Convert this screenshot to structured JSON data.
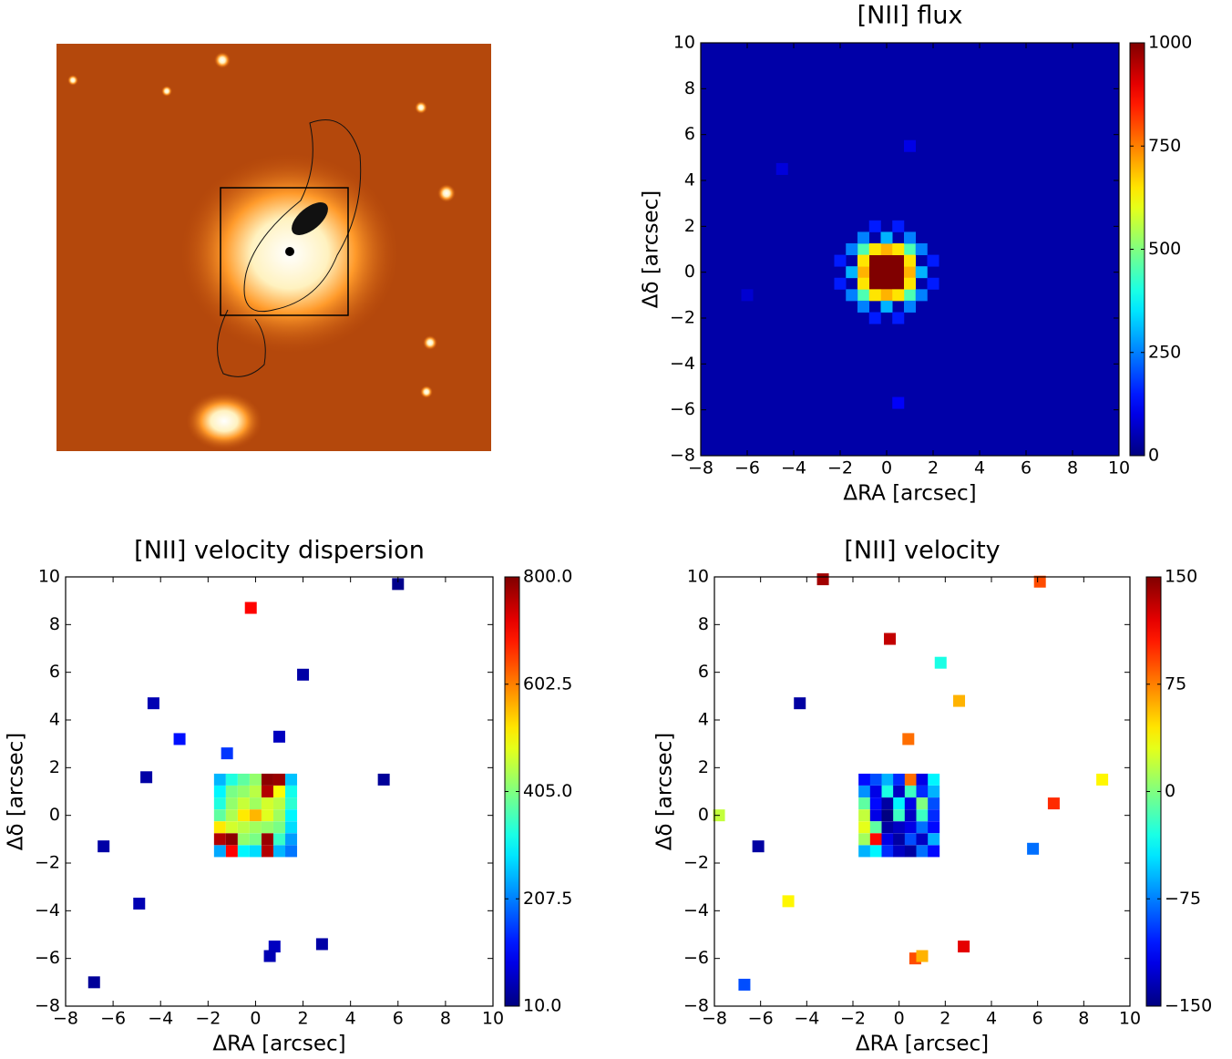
{
  "chart_data": [
    {
      "type": "heatmap",
      "title": "[NII] flux",
      "xlabel": "ΔRA [arcsec]",
      "ylabel": "Δδ [arcsec]",
      "xlim": [
        -8,
        10
      ],
      "ylim": [
        -8,
        10
      ],
      "xticks": [
        {
          "value": -8,
          "label": "−8"
        },
        {
          "value": -6,
          "label": "−6"
        },
        {
          "value": -4,
          "label": "−4"
        },
        {
          "value": -2,
          "label": "−2"
        },
        0,
        2,
        4,
        6,
        8,
        10
      ],
      "yticks": [
        {
          "value": -8,
          "label": "−8"
        },
        {
          "value": -6,
          "label": "−6"
        },
        {
          "value": -4,
          "label": "−4"
        },
        {
          "value": -2,
          "label": "−2"
        },
        0,
        2,
        4,
        6,
        8,
        10
      ],
      "colormap": "jet",
      "background": "#0000a8",
      "clim": [
        0,
        1000
      ],
      "cticks": [
        0,
        250,
        500,
        750,
        1000
      ],
      "x": [
        0,
        0.5,
        -0.5,
        0,
        0,
        0.5,
        -0.5,
        0.5,
        -0.5,
        1,
        -1,
        0,
        0,
        1,
        -1,
        1,
        -1,
        1,
        1,
        -1,
        -1,
        0.5,
        -0.5,
        0.5,
        -0.5,
        1.5,
        -1.5,
        0,
        0,
        1.5,
        -1.5,
        1.5,
        -1.5,
        1,
        -1,
        1,
        -1,
        2,
        -2,
        2,
        -2,
        0.5,
        -0.5,
        0.5,
        -0.5,
        -4.5,
        1,
        0.5,
        -6
      ],
      "y": [
        0,
        0,
        0,
        0.5,
        -0.5,
        0.5,
        0.5,
        -0.5,
        -0.5,
        0,
        0,
        1,
        -1,
        1,
        1,
        -1,
        -1,
        0.5,
        -0.5,
        0.5,
        -0.5,
        1,
        1,
        -1,
        -1,
        0,
        0,
        1.5,
        -1.5,
        1,
        1,
        -1,
        -1,
        1.5,
        1.5,
        -1.5,
        -1.5,
        0.5,
        0.5,
        -0.5,
        -0.5,
        2,
        2,
        -2,
        -2,
        4.5,
        5.5,
        -5.7,
        -1
      ],
      "values": [
        1000,
        1000,
        1000,
        1000,
        1000,
        1000,
        1000,
        1000,
        1000,
        700,
        700,
        700,
        700,
        450,
        450,
        450,
        450,
        650,
        650,
        650,
        650,
        650,
        650,
        650,
        650,
        300,
        300,
        300,
        300,
        250,
        250,
        250,
        250,
        250,
        250,
        250,
        250,
        150,
        150,
        150,
        150,
        150,
        150,
        150,
        150,
        90,
        100,
        120,
        80
      ]
    },
    {
      "type": "heatmap",
      "title": "[NII] velocity dispersion",
      "xlabel": "ΔRA [arcsec]",
      "ylabel": "Δδ [arcsec]",
      "xlim": [
        -8,
        10
      ],
      "ylim": [
        -8,
        10
      ],
      "xticks": [
        {
          "value": -8,
          "label": "−8"
        },
        {
          "value": -6,
          "label": "−6"
        },
        {
          "value": -4,
          "label": "−4"
        },
        {
          "value": -2,
          "label": "−2"
        },
        0,
        2,
        4,
        6,
        8,
        10
      ],
      "yticks": [
        {
          "value": -8,
          "label": "−8"
        },
        {
          "value": -6,
          "label": "−6"
        },
        {
          "value": -4,
          "label": "−4"
        },
        {
          "value": -2,
          "label": "−2"
        },
        0,
        2,
        4,
        6,
        8,
        10
      ],
      "colormap": "jet",
      "clim": [
        10,
        800
      ],
      "cticks": [
        {
          "value": 10,
          "label": "10.0"
        },
        207.5,
        {
          "value": 405,
          "label": "405.0"
        },
        602.5,
        {
          "value": 800,
          "label": "800.0"
        }
      ],
      "x": [
        -1.5,
        -1,
        -0.5,
        0,
        0.5,
        1,
        1.5,
        -1.5,
        -1,
        -0.5,
        0,
        0.5,
        1,
        1.5,
        -1.5,
        -1,
        -0.5,
        0,
        0.5,
        1,
        1.5,
        -1.5,
        -1,
        -0.5,
        0,
        0.5,
        1,
        1.5,
        -1.5,
        -1,
        -0.5,
        0,
        0.5,
        1,
        1.5,
        -1.5,
        -1,
        -0.5,
        0,
        0.5,
        1,
        1.5,
        -1.5,
        -1,
        -0.5,
        0,
        0.5,
        1,
        1.5,
        -4.3,
        2,
        -3.2,
        1,
        -1.2,
        -4.6,
        5.4,
        -6.4,
        -4.9,
        0.8,
        0.6,
        2.8,
        -6.8,
        6,
        -0.2
      ],
      "y": [
        1.5,
        1.5,
        1.5,
        1.5,
        1.5,
        1.5,
        1.5,
        1,
        1,
        1,
        1,
        1,
        1,
        1,
        0.5,
        0.5,
        0.5,
        0.5,
        0.5,
        0.5,
        0.5,
        0,
        0,
        0,
        0,
        0,
        0,
        0,
        -0.5,
        -0.5,
        -0.5,
        -0.5,
        -0.5,
        -0.5,
        -0.5,
        -1,
        -1,
        -1,
        -1,
        -1,
        -1,
        -1,
        -1.5,
        -1.5,
        -1.5,
        -1.5,
        -1.5,
        -1.5,
        -1.5,
        4.7,
        5.9,
        3.2,
        3.3,
        2.6,
        1.6,
        1.5,
        -1.3,
        -3.7,
        -5.5,
        -5.9,
        -5.4,
        -7,
        9.7,
        8.7
      ],
      "values": [
        250,
        330,
        380,
        420,
        790,
        780,
        260,
        300,
        400,
        420,
        450,
        760,
        500,
        320,
        330,
        420,
        460,
        430,
        470,
        450,
        340,
        380,
        440,
        520,
        560,
        480,
        430,
        300,
        520,
        470,
        450,
        430,
        420,
        400,
        280,
        760,
        790,
        420,
        400,
        780,
        350,
        230,
        240,
        700,
        300,
        280,
        760,
        250,
        200,
        50,
        40,
        120,
        60,
        150,
        40,
        30,
        40,
        50,
        60,
        50,
        40,
        30,
        20,
        700
      ]
    },
    {
      "type": "heatmap",
      "title": "[NII] velocity",
      "xlabel": "ΔRA [arcsec]",
      "ylabel": "Δδ [arcsec]",
      "xlim": [
        -8,
        10
      ],
      "ylim": [
        -8,
        10
      ],
      "xticks": [
        {
          "value": -8,
          "label": "−8"
        },
        {
          "value": -6,
          "label": "−6"
        },
        {
          "value": -4,
          "label": "−4"
        },
        {
          "value": -2,
          "label": "−2"
        },
        0,
        2,
        4,
        6,
        8,
        10
      ],
      "yticks": [
        {
          "value": -8,
          "label": "−8"
        },
        {
          "value": -6,
          "label": "−6"
        },
        {
          "value": -4,
          "label": "−4"
        },
        {
          "value": -2,
          "label": "−2"
        },
        0,
        2,
        4,
        6,
        8,
        10
      ],
      "colormap": "jet",
      "clim": [
        -150,
        150
      ],
      "cticks": [
        {
          "value": -150,
          "label": "−150"
        },
        {
          "value": -75,
          "label": "−75"
        },
        0,
        75,
        150
      ],
      "x": [
        -1.5,
        -1,
        -0.5,
        0,
        0.5,
        1,
        1.5,
        -1.5,
        -1,
        -0.5,
        0,
        0.5,
        1,
        1.5,
        -1.5,
        -1,
        -0.5,
        0,
        0.5,
        1,
        1.5,
        -1.5,
        -1,
        -0.5,
        0,
        0.5,
        1,
        1.5,
        -1.5,
        -1,
        -0.5,
        0,
        0.5,
        1,
        1.5,
        -1.5,
        -1,
        -0.5,
        0,
        0.5,
        1,
        1.5,
        -1.5,
        -1,
        -0.5,
        0,
        0.5,
        1,
        1.5,
        -3.3,
        -0.4,
        6.1,
        -4.3,
        1.8,
        2.6,
        0.4,
        -6.1,
        -4.8,
        0.7,
        1,
        2.8,
        -6.7,
        6.7,
        8.8,
        5.8,
        -7.8
      ],
      "y": [
        1.5,
        1.5,
        1.5,
        1.5,
        1.5,
        1.5,
        1.5,
        1,
        1,
        1,
        1,
        1,
        1,
        1,
        0.5,
        0.5,
        0.5,
        0.5,
        0.5,
        0.5,
        0.5,
        0,
        0,
        0,
        0,
        0,
        0,
        0,
        -0.5,
        -0.5,
        -0.5,
        -0.5,
        -0.5,
        -0.5,
        -0.5,
        -1,
        -1,
        -1,
        -1,
        -1,
        -1,
        -1,
        -1.5,
        -1.5,
        -1.5,
        -1.5,
        -1.5,
        -1.5,
        -1.5,
        9.9,
        7.4,
        9.8,
        4.7,
        6.4,
        4.8,
        3.2,
        -1.3,
        -3.6,
        -6,
        -5.9,
        -5.5,
        -7.1,
        0.5,
        1.5,
        -1.4,
        0
      ],
      "values": [
        -110,
        -90,
        -60,
        -100,
        80,
        -120,
        -40,
        -70,
        -120,
        -30,
        -130,
        -20,
        -100,
        -60,
        -10,
        -110,
        -140,
        -40,
        -120,
        0,
        -90,
        20,
        -120,
        -150,
        -20,
        -130,
        -20,
        -100,
        30,
        -10,
        -140,
        -130,
        -120,
        -80,
        -110,
        10,
        110,
        -120,
        -140,
        -90,
        -130,
        -60,
        -60,
        -40,
        -100,
        -130,
        -140,
        -80,
        -110,
        140,
        130,
        90,
        -140,
        -30,
        60,
        80,
        -140,
        40,
        90,
        60,
        120,
        -90,
        100,
        40,
        -80,
        20
      ]
    }
  ]
}
